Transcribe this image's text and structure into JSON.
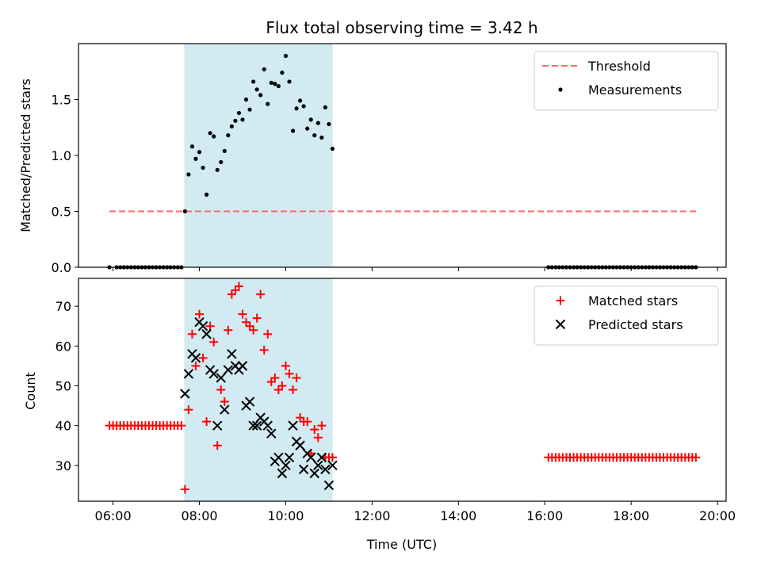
{
  "chart_data": [
    {
      "type": "scatter",
      "title": "Flux total observing time = 3.42 h",
      "xlabel": "",
      "ylabel": "Matched/Predicted stars",
      "xlim": [
        "05:12",
        "20:12"
      ],
      "ylim": [
        0,
        2.0
      ],
      "yticks": [
        "0.0",
        "0.5",
        "1.0",
        "1.5"
      ],
      "xticks": [
        "06:00",
        "08:00",
        "10:00",
        "12:00",
        "14:00",
        "16:00",
        "18:00",
        "20:00"
      ],
      "grid": false,
      "legend_position": "top-right",
      "shaded_span": {
        "start": "07:39",
        "end": "11:05",
        "color": "#add8e6"
      },
      "threshold": {
        "name": "Threshold",
        "value": 0.5,
        "x_start": "05:55",
        "x_end": "19:30",
        "color": "#ff6666",
        "style": "dashed"
      },
      "series": [
        {
          "name": "Measurements",
          "color": "#000000",
          "marker": "dot",
          "x": [
            "05:55",
            "06:05",
            "06:10",
            "06:15",
            "06:20",
            "06:25",
            "06:30",
            "06:35",
            "06:40",
            "06:45",
            "06:50",
            "06:55",
            "07:00",
            "07:05",
            "07:10",
            "07:15",
            "07:20",
            "07:25",
            "07:30",
            "07:35",
            "07:40",
            "07:45",
            "07:50",
            "07:55",
            "08:00",
            "08:05",
            "08:10",
            "08:15",
            "08:20",
            "08:25",
            "08:30",
            "08:35",
            "08:40",
            "08:45",
            "08:50",
            "08:55",
            "09:00",
            "09:05",
            "09:10",
            "09:15",
            "09:20",
            "09:25",
            "09:30",
            "09:35",
            "09:40",
            "09:45",
            "09:50",
            "09:55",
            "10:00",
            "10:05",
            "10:10",
            "10:15",
            "10:20",
            "10:25",
            "10:30",
            "10:35",
            "10:40",
            "10:45",
            "10:50",
            "10:55",
            "11:00",
            "11:05",
            "16:05",
            "16:10",
            "16:15",
            "16:20",
            "16:25",
            "16:30",
            "16:35",
            "16:40",
            "16:45",
            "16:50",
            "16:55",
            "17:00",
            "17:05",
            "17:10",
            "17:15",
            "17:20",
            "17:25",
            "17:30",
            "17:35",
            "17:40",
            "17:45",
            "17:50",
            "17:55",
            "18:00",
            "18:05",
            "18:10",
            "18:15",
            "18:20",
            "18:25",
            "18:30",
            "18:35",
            "18:40",
            "18:45",
            "18:50",
            "18:55",
            "19:00",
            "19:05",
            "19:10",
            "19:15",
            "19:20",
            "19:25",
            "19:30"
          ],
          "y": [
            0,
            0,
            0,
            0,
            0,
            0,
            0,
            0,
            0,
            0,
            0,
            0,
            0,
            0,
            0,
            0,
            0,
            0,
            0,
            0,
            0.5,
            0.83,
            1.08,
            0.97,
            1.03,
            0.89,
            0.65,
            1.2,
            1.17,
            0.87,
            0.94,
            1.04,
            1.18,
            1.26,
            1.31,
            1.38,
            1.32,
            1.5,
            1.41,
            1.66,
            1.59,
            1.54,
            1.77,
            1.46,
            1.65,
            1.64,
            1.62,
            1.74,
            1.89,
            1.66,
            1.22,
            1.42,
            1.49,
            1.44,
            1.24,
            1.32,
            1.18,
            1.29,
            1.16,
            1.43,
            1.28,
            1.06,
            0,
            0,
            0,
            0,
            0,
            0,
            0,
            0,
            0,
            0,
            0,
            0,
            0,
            0,
            0,
            0,
            0,
            0,
            0,
            0,
            0,
            0,
            0,
            0,
            0,
            0,
            0,
            0,
            0,
            0,
            0,
            0,
            0,
            0,
            0,
            0,
            0,
            0,
            0,
            0,
            0,
            0
          ]
        }
      ]
    },
    {
      "type": "scatter",
      "title": "",
      "xlabel": "Time (UTC)",
      "ylabel": "Count",
      "xlim": [
        "05:12",
        "20:12"
      ],
      "ylim": [
        21,
        77
      ],
      "yticks": [
        "30",
        "40",
        "50",
        "60",
        "70"
      ],
      "xticks": [
        "06:00",
        "08:00",
        "10:00",
        "12:00",
        "14:00",
        "16:00",
        "18:00",
        "20:00"
      ],
      "grid": false,
      "legend_position": "top-right",
      "shaded_span": {
        "start": "07:39",
        "end": "11:05",
        "color": "#add8e6"
      },
      "series": [
        {
          "name": "Matched stars",
          "color": "#ff0000",
          "marker": "plus",
          "x": [
            "05:55",
            "06:00",
            "06:05",
            "06:10",
            "06:15",
            "06:20",
            "06:25",
            "06:30",
            "06:35",
            "06:40",
            "06:45",
            "06:50",
            "06:55",
            "07:00",
            "07:05",
            "07:10",
            "07:15",
            "07:20",
            "07:25",
            "07:30",
            "07:35",
            "07:40",
            "07:45",
            "07:50",
            "07:55",
            "08:00",
            "08:05",
            "08:10",
            "08:15",
            "08:20",
            "08:25",
            "08:30",
            "08:35",
            "08:40",
            "08:45",
            "08:50",
            "08:55",
            "09:00",
            "09:05",
            "09:10",
            "09:15",
            "09:20",
            "09:25",
            "09:30",
            "09:35",
            "09:40",
            "09:45",
            "09:50",
            "09:55",
            "10:00",
            "10:05",
            "10:10",
            "10:15",
            "10:20",
            "10:25",
            "10:30",
            "10:35",
            "10:40",
            "10:45",
            "10:50",
            "10:55",
            "11:00",
            "11:05",
            "16:05",
            "16:10",
            "16:15",
            "16:20",
            "16:25",
            "16:30",
            "16:35",
            "16:40",
            "16:45",
            "16:50",
            "16:55",
            "17:00",
            "17:05",
            "17:10",
            "17:15",
            "17:20",
            "17:25",
            "17:30",
            "17:35",
            "17:40",
            "17:45",
            "17:50",
            "17:55",
            "18:00",
            "18:05",
            "18:10",
            "18:15",
            "18:20",
            "18:25",
            "18:30",
            "18:35",
            "18:40",
            "18:45",
            "18:50",
            "18:55",
            "19:00",
            "19:05",
            "19:10",
            "19:15",
            "19:20",
            "19:25",
            "19:30"
          ],
          "y": [
            40,
            40,
            40,
            40,
            40,
            40,
            40,
            40,
            40,
            40,
            40,
            40,
            40,
            40,
            40,
            40,
            40,
            40,
            40,
            40,
            40,
            24,
            44,
            63,
            55,
            68,
            57,
            41,
            65,
            61,
            35,
            49,
            46,
            64,
            73,
            74,
            75,
            68,
            66,
            65,
            64,
            67,
            73,
            59,
            63,
            51,
            52,
            49,
            50,
            55,
            53,
            49,
            52,
            42,
            41,
            41,
            33,
            39,
            37,
            40,
            32,
            32,
            32,
            32,
            32,
            32,
            32,
            32,
            32,
            32,
            32,
            32,
            32,
            32,
            32,
            32,
            32,
            32,
            32,
            32,
            32,
            32,
            32,
            32,
            32,
            32,
            32,
            32,
            32,
            32,
            32,
            32,
            32,
            32,
            32,
            32,
            32,
            32,
            32,
            32,
            32,
            32,
            32,
            32,
            32
          ]
        },
        {
          "name": "Predicted stars",
          "color": "#000000",
          "marker": "x",
          "x": [
            "07:40",
            "07:45",
            "07:50",
            "07:55",
            "08:00",
            "08:05",
            "08:10",
            "08:15",
            "08:20",
            "08:25",
            "08:30",
            "08:35",
            "08:40",
            "08:45",
            "08:50",
            "08:55",
            "09:00",
            "09:05",
            "09:10",
            "09:15",
            "09:20",
            "09:25",
            "09:30",
            "09:35",
            "09:40",
            "09:45",
            "09:50",
            "09:55",
            "10:00",
            "10:05",
            "10:10",
            "10:15",
            "10:20",
            "10:25",
            "10:30",
            "10:35",
            "10:40",
            "10:45",
            "10:50",
            "10:55",
            "11:00",
            "11:05"
          ],
          "y": [
            48,
            53,
            58,
            57,
            66,
            65,
            63,
            54,
            53,
            40,
            52,
            44,
            54,
            58,
            55,
            54,
            55,
            45,
            46,
            40,
            40,
            42,
            41,
            40,
            38,
            31,
            32,
            28,
            30,
            32,
            40,
            36,
            35,
            29,
            33,
            32,
            28,
            30,
            32,
            29,
            25,
            30
          ]
        }
      ]
    }
  ]
}
